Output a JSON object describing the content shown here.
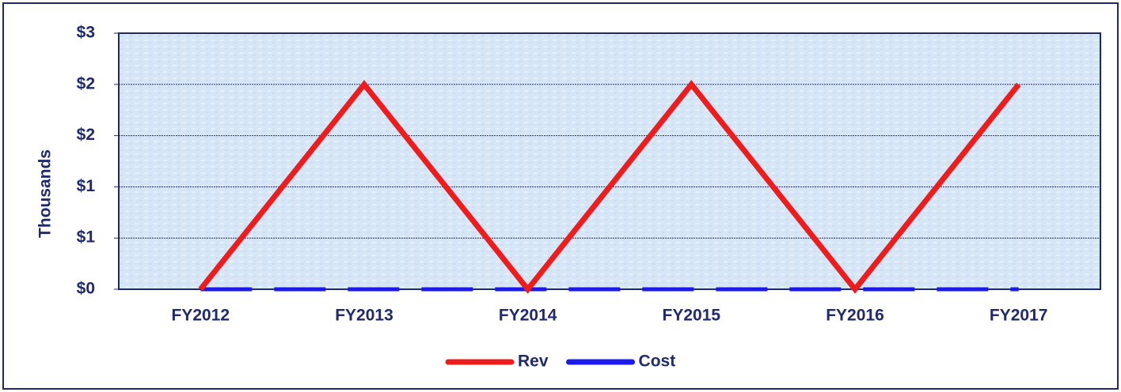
{
  "chart_data": {
    "type": "line",
    "y_label": "Thousands",
    "categories": [
      "FY2012",
      "FY2013",
      "FY2014",
      "FY2015",
      "FY2016",
      "FY2017"
    ],
    "series": [
      {
        "name": "Rev",
        "color": "#ee1c1c",
        "values": [
          0,
          2,
          0,
          2,
          0,
          2
        ]
      },
      {
        "name": "Cost",
        "color": "#1a1aee",
        "dashed": true,
        "values": [
          0,
          0,
          0,
          0,
          0,
          0
        ]
      }
    ],
    "ylim": [
      0,
      2.5
    ],
    "yticks": [
      {
        "value": 0,
        "label": "$0"
      },
      {
        "value": 0.5,
        "label": "$1"
      },
      {
        "value": 1,
        "label": "$1"
      },
      {
        "value": 1.5,
        "label": "$2"
      },
      {
        "value": 2,
        "label": "$2"
      },
      {
        "value": 2.5,
        "label": "$3"
      }
    ],
    "grid": true,
    "legend": "bottom"
  }
}
